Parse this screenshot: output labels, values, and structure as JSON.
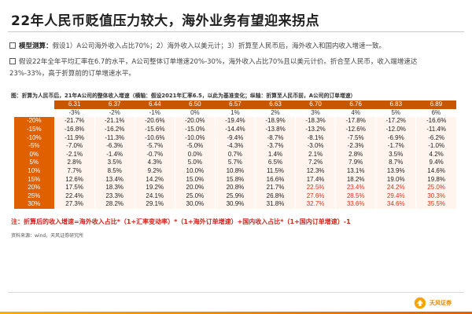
{
  "slide": {
    "title": "22年人民币贬值压力较大，海外业务有望迎来拐点",
    "bullet1_bold": "模型测算：",
    "bullet1_text": "假设1）A公司海外收入占比70%；2）海外收入以美元计；3）折算至人民币后，海外收入和国内收入增速一致。",
    "bullet2_text": "假设22年全年平均汇率在6.7的水平，A公司整体订单增速20%-30%，海外收入占比70%且以美元计价。折合至人民币，收入端增速达23%-33%，高于折算前的订单增速水平。"
  },
  "table": {
    "caption": "图：折算为人民币后，21年A公司的整体收入增速（横轴：假设2021年汇率6.5，以此为基准变化；纵轴：折算至人民币前，A公司的订单增速）",
    "rates": [
      "6.31",
      "6.37",
      "6.44",
      "6.50",
      "6.57",
      "6.63",
      "6.70",
      "6.76",
      "6.83",
      "6.89"
    ],
    "changes": [
      "-3%",
      "-2%",
      "-1%",
      "0%",
      "1%",
      "2%",
      "3%",
      "4%",
      "5%",
      "6%"
    ],
    "rows": [
      {
        "label": "-20%",
        "values": [
          "-21.7%",
          "-21.1%",
          "-20.6%",
          "-20.0%",
          "-19.4%",
          "-18.9%",
          "-18.3%",
          "-17.8%",
          "-17.2%",
          "-16.6%"
        ]
      },
      {
        "label": "-15%",
        "values": [
          "-16.8%",
          "-16.2%",
          "-15.6%",
          "-15.0%",
          "-14.4%",
          "-13.8%",
          "-13.2%",
          "-12.6%",
          "-12.0%",
          "-11.4%"
        ]
      },
      {
        "label": "-10%",
        "values": [
          "-11.9%",
          "-11.3%",
          "-10.6%",
          "-10.0%",
          "-9.4%",
          "-8.7%",
          "-8.1%",
          "-7.5%",
          "-6.9%",
          "-6.2%"
        ]
      },
      {
        "label": "-5%",
        "values": [
          "-7.0%",
          "-6.3%",
          "-5.7%",
          "-5.0%",
          "-4.3%",
          "-3.7%",
          "-3.0%",
          "-2.3%",
          "-1.7%",
          "-1.0%"
        ]
      },
      {
        "label": "0%",
        "values": [
          "-2.1%",
          "-1.4%",
          "-0.7%",
          "0.0%",
          "0.7%",
          "1.4%",
          "2.1%",
          "2.8%",
          "3.5%",
          "4.2%"
        ]
      },
      {
        "label": "5%",
        "values": [
          "2.8%",
          "3.5%",
          "4.3%",
          "5.0%",
          "5.7%",
          "6.5%",
          "7.2%",
          "7.9%",
          "8.7%",
          "9.4%"
        ]
      },
      {
        "label": "10%",
        "values": [
          "7.7%",
          "8.5%",
          "9.2%",
          "10.0%",
          "10.8%",
          "11.5%",
          "12.3%",
          "13.1%",
          "13.9%",
          "14.6%"
        ]
      },
      {
        "label": "15%",
        "values": [
          "12.6%",
          "13.4%",
          "14.2%",
          "15.0%",
          "15.8%",
          "16.6%",
          "17.4%",
          "18.2%",
          "19.0%",
          "19.8%"
        ]
      },
      {
        "label": "20%",
        "values": [
          "17.5%",
          "18.3%",
          "19.2%",
          "20.0%",
          "20.8%",
          "21.7%",
          "22.5%",
          "23.4%",
          "24.2%",
          "25.0%"
        ]
      },
      {
        "label": "25%",
        "values": [
          "22.4%",
          "23.3%",
          "24.1%",
          "25.0%",
          "25.9%",
          "26.8%",
          "27.6%",
          "28.5%",
          "29.4%",
          "30.3%"
        ]
      },
      {
        "label": "30%",
        "values": [
          "27.3%",
          "28.2%",
          "29.1%",
          "30.0%",
          "30.9%",
          "31.8%",
          "32.7%",
          "33.6%",
          "34.6%",
          "35.5%"
        ]
      }
    ],
    "highlight_color": "#e0311a"
  },
  "note": "注：折算后的收入增速=海外收入占比*（1+汇率变动率）*（1+海外订单增速）+国内收入占比*（1+国内订单增速）-1",
  "source": "资料来源：wind，天风证券研究所",
  "brand": {
    "name": "天风证券",
    "accent": "#e88a00"
  }
}
